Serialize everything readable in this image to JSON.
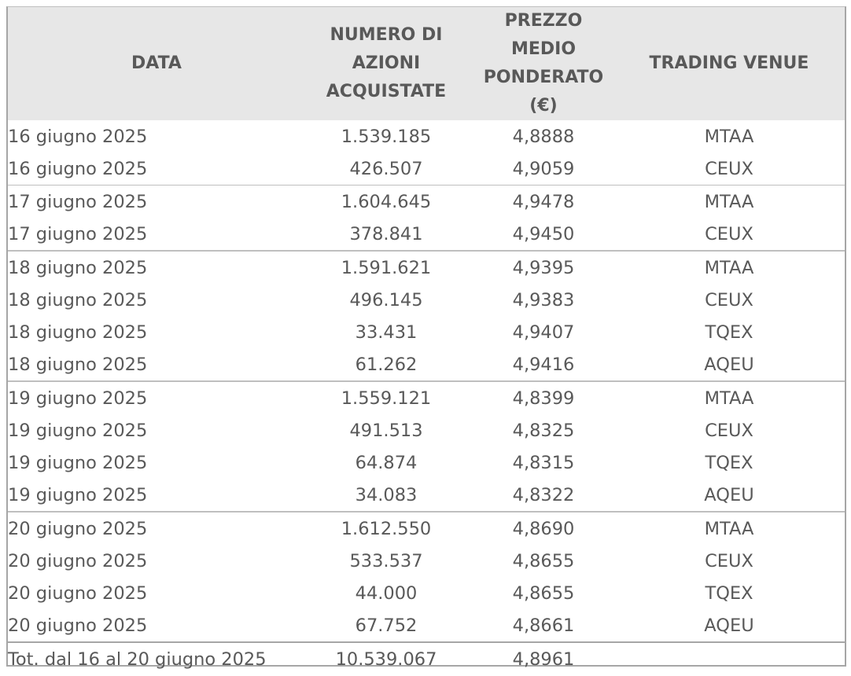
{
  "table": {
    "headers": {
      "data": [
        "DATA"
      ],
      "numero": [
        "NUMERO DI",
        "AZIONI",
        "ACQUISTATE"
      ],
      "prezzo": [
        "PREZZO MEDIO",
        "PONDERATO (€)"
      ],
      "venue": [
        "TRADING VENUE"
      ]
    },
    "rows": [
      {
        "date": "16 giugno 2025",
        "shares": "1.539.185",
        "price": "4,8888",
        "venue": "MTAA"
      },
      {
        "date": "16 giugno 2025",
        "shares": "426.507",
        "price": "4,9059",
        "venue": "CEUX"
      },
      {
        "date": "17 giugno 2025",
        "shares": "1.604.645",
        "price": "4,9478",
        "venue": "MTAA"
      },
      {
        "date": "17 giugno 2025",
        "shares": "378.841",
        "price": "4,9450",
        "venue": "CEUX"
      },
      {
        "date": "18 giugno 2025",
        "shares": "1.591.621",
        "price": "4,9395",
        "venue": "MTAA"
      },
      {
        "date": "18 giugno 2025",
        "shares": "496.145",
        "price": "4,9383",
        "venue": "CEUX"
      },
      {
        "date": "18 giugno 2025",
        "shares": "33.431",
        "price": "4,9407",
        "venue": "TQEX"
      },
      {
        "date": "18 giugno 2025",
        "shares": "61.262",
        "price": "4,9416",
        "venue": "AQEU"
      },
      {
        "date": "19 giugno 2025",
        "shares": "1.559.121",
        "price": "4,8399",
        "venue": "MTAA"
      },
      {
        "date": "19 giugno 2025",
        "shares": "491.513",
        "price": "4,8325",
        "venue": "CEUX"
      },
      {
        "date": "19 giugno 2025",
        "shares": "64.874",
        "price": "4,8315",
        "venue": "TQEX"
      },
      {
        "date": "19 giugno 2025",
        "shares": "34.083",
        "price": "4,8322",
        "venue": "AQEU"
      },
      {
        "date": "20 giugno 2025",
        "shares": "1.612.550",
        "price": "4,8690",
        "venue": "MTAA"
      },
      {
        "date": "20 giugno 2025",
        "shares": "533.537",
        "price": "4,8655",
        "venue": "CEUX"
      },
      {
        "date": "20 giugno 2025",
        "shares": "44.000",
        "price": "4,8655",
        "venue": "TQEX"
      },
      {
        "date": "20 giugno 2025",
        "shares": "67.752",
        "price": "4,8661",
        "venue": "AQEU"
      }
    ],
    "total": {
      "label": "Tot. dal 16 al 20 giugno 2025",
      "shares": "10.539.067",
      "price": "4,8961",
      "venue": ""
    }
  },
  "colors": {
    "text": "#595959",
    "header_bg": "#e7e7e7",
    "border": "#bfbfbf"
  }
}
